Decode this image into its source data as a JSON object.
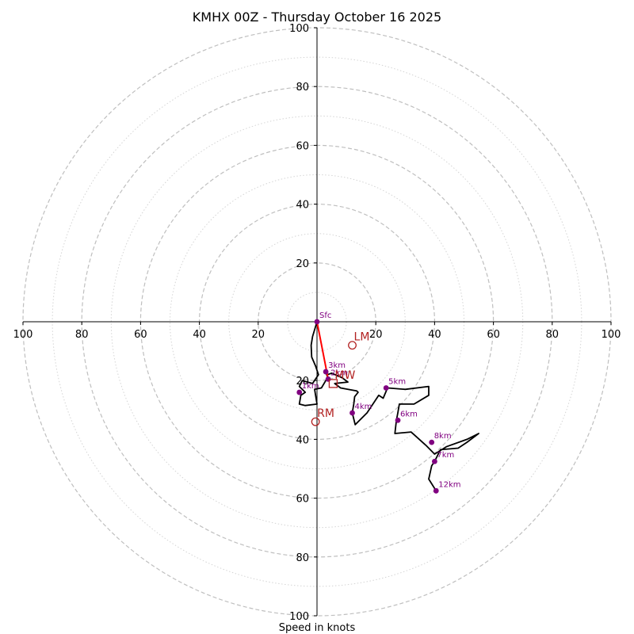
{
  "chart_data": {
    "type": "hodograph",
    "title": "KMHX 00Z - Thursday October 16 2025",
    "xlabel": "Speed in knots",
    "radius_max": 100,
    "major_rings": [
      20,
      40,
      60,
      80,
      100
    ],
    "minor_rings": [
      10,
      30,
      50,
      70,
      90
    ],
    "axis_tick_values": [
      20,
      40,
      60,
      80,
      100
    ],
    "axis_tick_labels": [
      "20",
      "40",
      "60",
      "80",
      "100"
    ],
    "hodograph": [
      [
        0,
        0
      ],
      [
        -1.5,
        -5
      ],
      [
        -2,
        -8
      ],
      [
        -1.8,
        -12
      ],
      [
        -0.5,
        -15
      ],
      [
        0.5,
        -18
      ],
      [
        -1.5,
        -21
      ],
      [
        -5,
        -20
      ],
      [
        -6,
        -22
      ],
      [
        -4,
        -24
      ],
      [
        -5.5,
        -25
      ],
      [
        -6,
        -28
      ],
      [
        -4,
        -28.5
      ],
      [
        0,
        -28
      ],
      [
        -0.8,
        -23
      ],
      [
        1.5,
        -22.5
      ],
      [
        3,
        -20
      ],
      [
        3.8,
        -19.5
      ],
      [
        3,
        -17
      ],
      [
        3.5,
        -18
      ],
      [
        5,
        -17.5
      ],
      [
        8.5,
        -19
      ],
      [
        10.5,
        -20.5
      ],
      [
        6,
        -21
      ],
      [
        8,
        -22.5
      ],
      [
        10.5,
        -23
      ],
      [
        13.5,
        -23.5
      ],
      [
        14,
        -24
      ],
      [
        12.8,
        -25.5
      ],
      [
        12.5,
        -28
      ],
      [
        12,
        -31
      ],
      [
        13,
        -35
      ],
      [
        17,
        -31
      ],
      [
        21,
        -25
      ],
      [
        22.5,
        -26
      ],
      [
        24,
        -22.5
      ],
      [
        30,
        -23
      ],
      [
        38,
        -22
      ],
      [
        38,
        -25
      ],
      [
        33,
        -28
      ],
      [
        28,
        -28
      ],
      [
        27.5,
        -31
      ],
      [
        27,
        -33.5
      ],
      [
        26.5,
        -38
      ],
      [
        32,
        -37.5
      ],
      [
        37,
        -42
      ],
      [
        40,
        -45
      ],
      [
        44,
        -42.5
      ],
      [
        51,
        -40
      ],
      [
        55,
        -38
      ],
      [
        51,
        -41
      ],
      [
        48,
        -43
      ],
      [
        42,
        -43.5
      ],
      [
        40,
        -47.5
      ],
      [
        39,
        -49
      ],
      [
        38,
        -53.5
      ],
      [
        40.5,
        -57.5
      ]
    ],
    "height_markers": [
      {
        "label": "Sfc",
        "u": 0,
        "v": 0
      },
      {
        "label": "1km",
        "u": -6,
        "v": -24
      },
      {
        "label": "2km",
        "u": 3.8,
        "v": -19.5
      },
      {
        "label": "3km",
        "u": 3,
        "v": -17
      },
      {
        "label": "4km",
        "u": 12,
        "v": -31
      },
      {
        "label": "5km",
        "u": 23.5,
        "v": -22.5
      },
      {
        "label": "6km",
        "u": 27.5,
        "v": -33.5
      },
      {
        "label": "7km",
        "u": 40,
        "v": -47.5
      },
      {
        "label": "8km",
        "u": 39,
        "v": -41
      },
      {
        "label": "12km",
        "u": 40.5,
        "v": -57.5
      }
    ],
    "storm_motions": [
      {
        "label": "LM",
        "u": 12,
        "v": -8,
        "marker": "circle"
      },
      {
        "label": "RM",
        "u": -0.5,
        "v": -34,
        "marker": "circle"
      },
      {
        "label": "MW",
        "u": 5.5,
        "v": -21,
        "marker": "square"
      }
    ],
    "shear_vector": {
      "from": [
        0,
        0
      ],
      "to": [
        3.8,
        -19.5
      ]
    },
    "colors": {
      "hodograph": "#000000",
      "marker": "#800080",
      "storm": "#b22222",
      "shear": "#ff0000",
      "grid": "#bfbfbf",
      "axis": "#000000"
    }
  }
}
